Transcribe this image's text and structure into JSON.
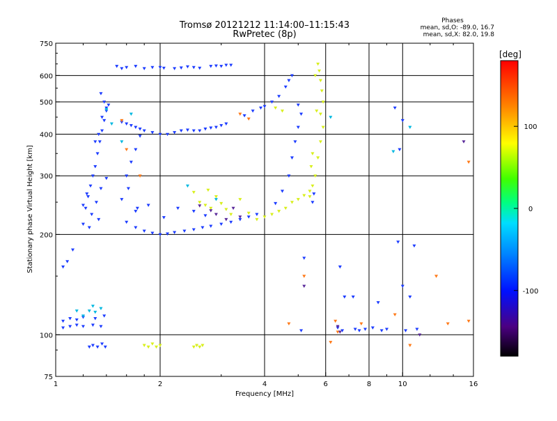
{
  "chart_data": {
    "type": "scatter",
    "title": "Tromsø 20121212 11:14:00–11:15:43",
    "subtitle": "RwPretec (8p)",
    "xlabel": "Frequency [MHz]",
    "ylabel": "Stationary phase Virtual Height [km]",
    "xscale": "log",
    "yscale": "log",
    "xlim": [
      1,
      16
    ],
    "ylim": [
      75,
      750
    ],
    "x_ticks": [
      "1",
      "2",
      "4",
      "6",
      "8",
      "10",
      "16"
    ],
    "x_gridlines": [
      2,
      4,
      6,
      8,
      10
    ],
    "y_ticks": [
      "750",
      "600",
      "500",
      "400",
      "300",
      "200",
      "100",
      "75"
    ],
    "y_gridlines": [
      600,
      500,
      400,
      300,
      200,
      100
    ],
    "grid": true,
    "stats": {
      "heading": "Phases",
      "line_o": "mean, sd,O: -89.0, 16.7",
      "line_x": "mean, sd,X:  82.0, 19.8"
    },
    "colorbar": {
      "label": "[deg]",
      "range": [
        -180,
        180
      ],
      "ticks": [
        "100",
        "0",
        "-100"
      ],
      "tick_values": [
        100,
        0,
        -100
      ]
    },
    "series": [
      {
        "points": [
          [
            1.05,
            105
          ],
          [
            1.1,
            106
          ],
          [
            1.15,
            107
          ],
          [
            1.2,
            106
          ],
          [
            1.28,
            107
          ],
          [
            1.35,
            106
          ],
          [
            1.05,
            110
          ],
          [
            1.1,
            112
          ],
          [
            1.15,
            111
          ],
          [
            1.2,
            113
          ],
          [
            1.3,
            112
          ],
          [
            1.38,
            114
          ],
          [
            1.05,
            160
          ],
          [
            1.08,
            166
          ],
          [
            1.12,
            180
          ],
          [
            1.25,
            92
          ],
          [
            1.28,
            93
          ],
          [
            1.32,
            92
          ],
          [
            1.36,
            94
          ],
          [
            1.39,
            92
          ],
          [
            1.2,
            215
          ],
          [
            1.22,
            240
          ],
          [
            1.24,
            260
          ],
          [
            1.26,
            280
          ],
          [
            1.28,
            300
          ],
          [
            1.3,
            320
          ],
          [
            1.32,
            350
          ],
          [
            1.34,
            380
          ],
          [
            1.36,
            410
          ],
          [
            1.38,
            440
          ],
          [
            1.4,
            470
          ],
          [
            1.42,
            490
          ],
          [
            1.2,
            245
          ],
          [
            1.23,
            265
          ],
          [
            1.27,
            230
          ],
          [
            1.31,
            250
          ],
          [
            1.35,
            275
          ],
          [
            1.4,
            295
          ],
          [
            1.25,
            210
          ],
          [
            1.33,
            222
          ],
          [
            1.3,
            380
          ],
          [
            1.33,
            400
          ],
          [
            1.36,
            450
          ],
          [
            1.38,
            500
          ],
          [
            1.4,
            480
          ],
          [
            1.35,
            530
          ],
          [
            1.55,
            255
          ],
          [
            1.6,
            300
          ],
          [
            1.65,
            330
          ],
          [
            1.7,
            360
          ],
          [
            1.75,
            395
          ],
          [
            1.62,
            275
          ],
          [
            1.72,
            240
          ],
          [
            1.5,
            640
          ],
          [
            1.55,
            630
          ],
          [
            1.6,
            635
          ],
          [
            1.7,
            640
          ],
          [
            1.8,
            630
          ],
          [
            1.9,
            635
          ],
          [
            2.0,
            635
          ],
          [
            2.05,
            632
          ],
          [
            2.2,
            630
          ],
          [
            2.3,
            633
          ],
          [
            2.4,
            638
          ],
          [
            2.5,
            635
          ],
          [
            2.6,
            632
          ],
          [
            2.8,
            640
          ],
          [
            2.9,
            642
          ],
          [
            3.0,
            640
          ],
          [
            3.1,
            645
          ],
          [
            3.2,
            645
          ],
          [
            1.55,
            435
          ],
          [
            1.6,
            430
          ],
          [
            1.65,
            425
          ],
          [
            1.7,
            420
          ],
          [
            1.75,
            415
          ],
          [
            1.8,
            410
          ],
          [
            1.9,
            405
          ],
          [
            2.0,
            400
          ],
          [
            2.1,
            400
          ],
          [
            2.2,
            405
          ],
          [
            2.3,
            410
          ],
          [
            2.4,
            412
          ],
          [
            2.5,
            410
          ],
          [
            2.6,
            410
          ],
          [
            2.7,
            415
          ],
          [
            2.8,
            418
          ],
          [
            2.9,
            420
          ],
          [
            3.0,
            425
          ],
          [
            3.1,
            430
          ],
          [
            1.6,
            218
          ],
          [
            1.7,
            210
          ],
          [
            1.8,
            205
          ],
          [
            1.9,
            202
          ],
          [
            2.0,
            200
          ],
          [
            2.1,
            201
          ],
          [
            2.2,
            203
          ],
          [
            2.35,
            205
          ],
          [
            2.5,
            207
          ],
          [
            2.65,
            210
          ],
          [
            2.8,
            212
          ],
          [
            3.0,
            215
          ],
          [
            3.2,
            218
          ],
          [
            3.4,
            222
          ],
          [
            3.6,
            226
          ],
          [
            3.8,
            230
          ],
          [
            1.7,
            235
          ],
          [
            1.85,
            245
          ],
          [
            2.05,
            225
          ],
          [
            2.25,
            240
          ],
          [
            2.5,
            235
          ],
          [
            2.7,
            228
          ],
          [
            3.5,
            455
          ],
          [
            3.7,
            470
          ],
          [
            3.9,
            480
          ],
          [
            4.0,
            485
          ],
          [
            4.2,
            500
          ],
          [
            4.4,
            520
          ],
          [
            4.6,
            555
          ],
          [
            4.7,
            580
          ],
          [
            4.8,
            600
          ],
          [
            4.3,
            248
          ],
          [
            4.5,
            270
          ],
          [
            4.7,
            300
          ],
          [
            4.8,
            340
          ],
          [
            4.9,
            380
          ],
          [
            5.0,
            420
          ],
          [
            5.1,
            460
          ],
          [
            5.0,
            490
          ],
          [
            5.5,
            250
          ],
          [
            5.55,
            265
          ],
          [
            9.5,
            480
          ],
          [
            9.8,
            360
          ],
          [
            10.0,
            440
          ],
          [
            10.0,
            140
          ],
          [
            5.1,
            103
          ],
          [
            6.5,
            105
          ],
          [
            6.7,
            103
          ],
          [
            7.3,
            104
          ],
          [
            7.5,
            103
          ],
          [
            7.8,
            104
          ],
          [
            8.2,
            105
          ],
          [
            8.7,
            103
          ],
          [
            9.0,
            104
          ],
          [
            10.2,
            103
          ],
          [
            11.0,
            104
          ],
          [
            5.2,
            170
          ],
          [
            6.8,
            130
          ],
          [
            7.2,
            130
          ],
          [
            6.6,
            160
          ],
          [
            8.5,
            125
          ],
          [
            9.7,
            190
          ],
          [
            10.5,
            130
          ],
          [
            10.8,
            185
          ]
        ]
      },
      {
        "points": [
          [
            1.2,
            114
          ],
          [
            1.25,
            118
          ],
          [
            1.3,
            117
          ],
          [
            1.35,
            120
          ],
          [
            1.15,
            118
          ],
          [
            1.28,
            122
          ],
          [
            1.65,
            460
          ],
          [
            1.55,
            380
          ],
          [
            1.4,
            475
          ],
          [
            1.45,
            430
          ],
          [
            2.4,
            280
          ],
          [
            2.9,
            255
          ],
          [
            6.2,
            450
          ],
          [
            9.4,
            355
          ],
          [
            10.5,
            420
          ]
        ]
      },
      {
        "points": [
          [
            1.8,
            93
          ],
          [
            1.85,
            92
          ],
          [
            1.9,
            94
          ],
          [
            1.95,
            92
          ],
          [
            2.0,
            93
          ],
          [
            2.5,
            92
          ],
          [
            2.55,
            93
          ],
          [
            2.6,
            92
          ],
          [
            2.65,
            93
          ],
          [
            2.6,
            250
          ],
          [
            2.7,
            245
          ],
          [
            2.8,
            240
          ],
          [
            2.9,
            260
          ],
          [
            3.0,
            248
          ],
          [
            3.1,
            238
          ],
          [
            2.5,
            268
          ],
          [
            2.75,
            272
          ],
          [
            3.2,
            230
          ],
          [
            3.4,
            255
          ],
          [
            3.6,
            232
          ],
          [
            5.4,
            260
          ],
          [
            5.5,
            280
          ],
          [
            5.6,
            300
          ],
          [
            5.7,
            340
          ],
          [
            5.8,
            380
          ],
          [
            5.9,
            420
          ],
          [
            5.8,
            460
          ],
          [
            5.9,
            500
          ],
          [
            5.85,
            540
          ],
          [
            5.8,
            580
          ],
          [
            5.75,
            620
          ],
          [
            5.7,
            650
          ],
          [
            5.6,
            600
          ],
          [
            5.65,
            470
          ],
          [
            5.5,
            350
          ],
          [
            5.45,
            320
          ],
          [
            4.8,
            250
          ],
          [
            5.0,
            255
          ],
          [
            5.2,
            262
          ],
          [
            5.4,
            270
          ],
          [
            4.6,
            240
          ],
          [
            4.4,
            235
          ],
          [
            4.2,
            230
          ],
          [
            4.0,
            226
          ],
          [
            3.8,
            222
          ],
          [
            4.3,
            480
          ],
          [
            4.5,
            470
          ]
        ]
      },
      {
        "points": [
          [
            1.55,
            440
          ],
          [
            1.6,
            360
          ],
          [
            1.75,
            300
          ],
          [
            3.4,
            460
          ],
          [
            3.6,
            445
          ],
          [
            4.7,
            108
          ],
          [
            6.2,
            95
          ],
          [
            6.4,
            110
          ],
          [
            6.5,
            102
          ],
          [
            10.5,
            93
          ],
          [
            12.5,
            150
          ],
          [
            13.5,
            108
          ],
          [
            15.5,
            110
          ],
          [
            15.5,
            330
          ],
          [
            9.5,
            115
          ],
          [
            5.2,
            150
          ],
          [
            7.6,
            108
          ]
        ]
      },
      {
        "points": [
          [
            2.6,
            244
          ],
          [
            2.8,
            236
          ],
          [
            2.9,
            230
          ],
          [
            3.1,
            222
          ],
          [
            3.25,
            240
          ],
          [
            3.4,
            226
          ],
          [
            6.5,
            106
          ],
          [
            6.6,
            102
          ],
          [
            15.0,
            380
          ],
          [
            11.2,
            100
          ],
          [
            5.2,
            140
          ]
        ]
      }
    ]
  }
}
